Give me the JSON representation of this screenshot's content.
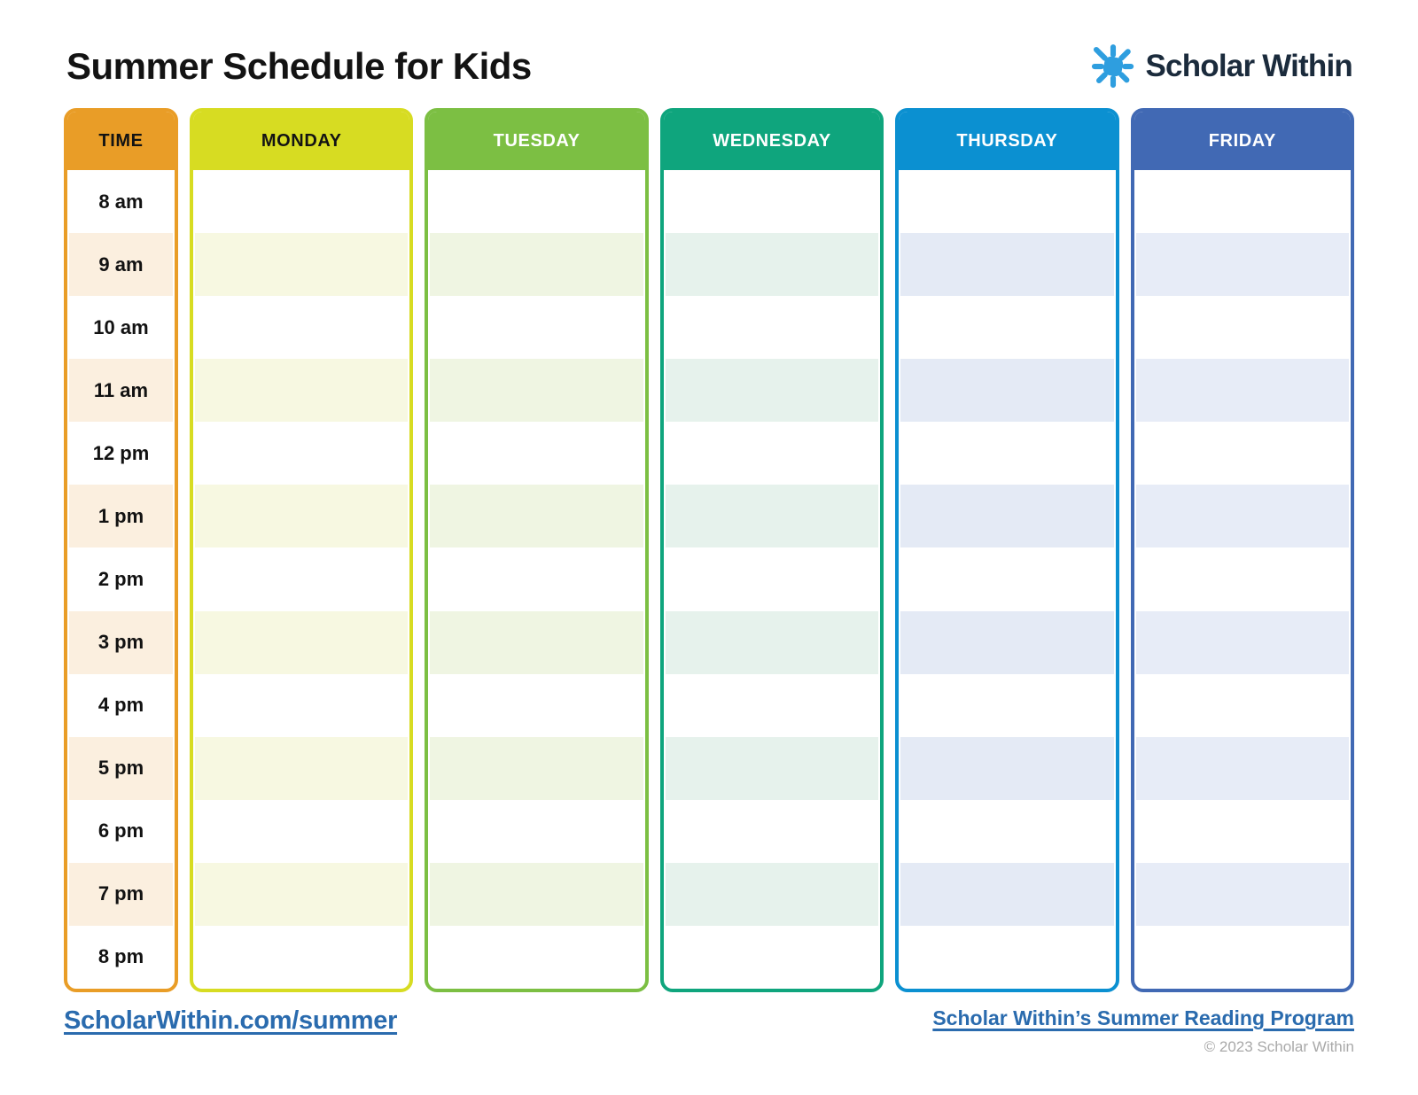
{
  "title": "Summer Schedule for Kids",
  "logo": {
    "brand": "Scholar Within",
    "sun_icon": "sun-icon",
    "sun_color": "#2e9edf",
    "text_color": "#1b2b3c"
  },
  "schedule": {
    "time_column": {
      "label": "TIME",
      "color": "#e99d27",
      "stripe": "#fbefdf",
      "header_text_color": "#131313",
      "times": [
        "8 am",
        "9 am",
        "10 am",
        "11 am",
        "12 pm",
        "1 pm",
        "2 pm",
        "3 pm",
        "4 pm",
        "5 pm",
        "6 pm",
        "7 pm",
        "8 pm"
      ]
    },
    "days": [
      {
        "label": "MONDAY",
        "color": "#d7dc22",
        "stripe": "#f7f8e1",
        "header_text_color": "#131313"
      },
      {
        "label": "TUESDAY",
        "color": "#7cbf43",
        "stripe": "#eff5e2",
        "header_text_color": "#ffffff"
      },
      {
        "label": "WEDNESDAY",
        "color": "#0fa57d",
        "stripe": "#e6f2ec",
        "header_text_color": "#ffffff"
      },
      {
        "label": "THURSDAY",
        "color": "#0b90d1",
        "stripe": "#e4eaf5",
        "header_text_color": "#ffffff"
      },
      {
        "label": "FRIDAY",
        "color": "#4169b4",
        "stripe": "#e7ecf7",
        "header_text_color": "#ffffff"
      }
    ]
  },
  "footer": {
    "left_link": "ScholarWithin.com/summer",
    "right_link": "Scholar Within’s Summer Reading Program",
    "copyright": "© 2023 Scholar Within",
    "link_color": "#2a6bae"
  }
}
